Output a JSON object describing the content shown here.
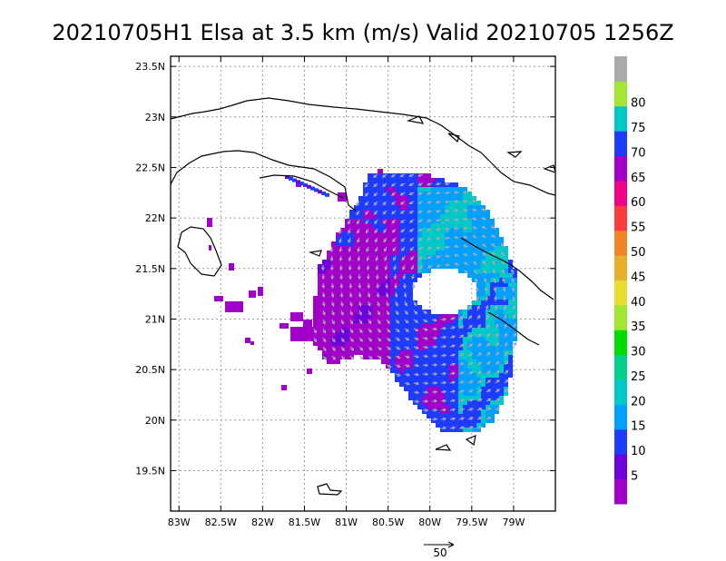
{
  "title": "20210705H1 Elsa at 3.5 km (m/s) Valid 20210705  1256Z",
  "map": {
    "lon_range": [
      -83.1,
      -78.5
    ],
    "lat_range": [
      19.1,
      23.6
    ],
    "x_ticks": [
      {
        "lon": -83.0,
        "label": "83W"
      },
      {
        "lon": -82.5,
        "label": "82.5W"
      },
      {
        "lon": -82.0,
        "label": "82W"
      },
      {
        "lon": -81.5,
        "label": "81.5W"
      },
      {
        "lon": -81.0,
        "label": "81W"
      },
      {
        "lon": -80.5,
        "label": "80.5W"
      },
      {
        "lon": -80.0,
        "label": "80W"
      },
      {
        "lon": -79.5,
        "label": "79.5W"
      },
      {
        "lon": -79.0,
        "label": "79W"
      }
    ],
    "y_ticks": [
      {
        "lat": 23.5,
        "label": "23.5N"
      },
      {
        "lat": 23.0,
        "label": "23N"
      },
      {
        "lat": 22.5,
        "label": "22.5N"
      },
      {
        "lat": 22.0,
        "label": "22N"
      },
      {
        "lat": 21.5,
        "label": "21.5N"
      },
      {
        "lat": 21.0,
        "label": "21N"
      },
      {
        "lat": 20.5,
        "label": "20.5N"
      },
      {
        "lat": 20.0,
        "label": "20N"
      },
      {
        "lat": 19.5,
        "label": "19.5N"
      }
    ],
    "grid": true,
    "coastline_color": "#000000",
    "arrow_color": "#a9a9a9"
  },
  "colorbar": {
    "levels": [
      {
        "color": "#a000c8"
      },
      {
        "color": "#6e00dc",
        "label": "5"
      },
      {
        "color": "#1e3cff",
        "label": "10"
      },
      {
        "color": "#00a0ff",
        "label": "15"
      },
      {
        "color": "#00c8c8",
        "label": "20"
      },
      {
        "color": "#00d28c",
        "label": "25"
      },
      {
        "color": "#00dc00",
        "label": "30"
      },
      {
        "color": "#a0e632",
        "label": "35"
      },
      {
        "color": "#e6dc32",
        "label": "40"
      },
      {
        "color": "#e6af2d",
        "label": "45"
      },
      {
        "color": "#f08228",
        "label": "50"
      },
      {
        "color": "#fa3c3c",
        "label": "55"
      },
      {
        "color": "#f00082",
        "label": "60"
      },
      {
        "color": "#a000c8",
        "label": "65"
      },
      {
        "color": "#1e3cff",
        "label": "70"
      },
      {
        "color": "#00c8c8",
        "label": "75"
      },
      {
        "color": "#a0e632",
        "label": "80"
      },
      {
        "color": "#aaaaaa"
      }
    ]
  },
  "reference_vector": {
    "label": "50"
  }
}
